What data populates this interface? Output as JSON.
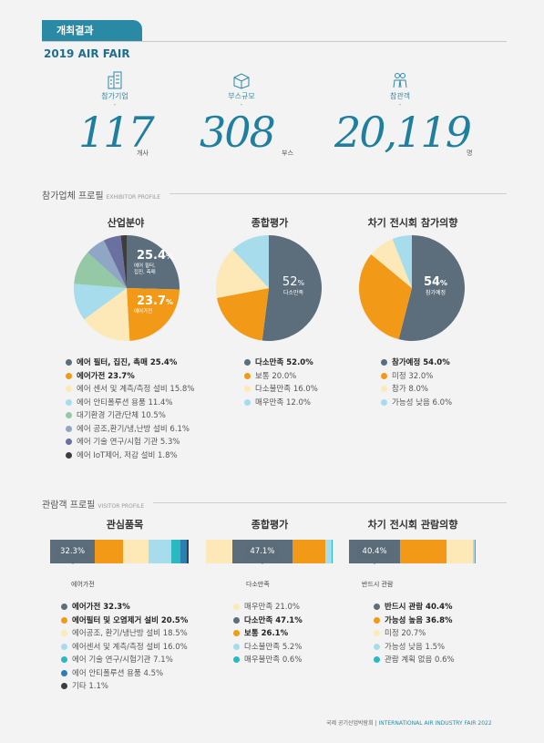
{
  "header": {
    "tab": "개최결과",
    "title": "2019 AIR FAIR"
  },
  "stats": [
    {
      "label": "참가기업",
      "dash": "-",
      "value": "117",
      "unit": "개사",
      "icon": "building-icon"
    },
    {
      "label": "부스규모",
      "dash": "-",
      "value": "308",
      "unit": "부스",
      "icon": "booth-icon"
    },
    {
      "label": "참관객",
      "dash": "-",
      "value": "20,119",
      "unit": "명",
      "icon": "visitors-icon"
    }
  ],
  "exhibitor": {
    "title": "참가업체 프로필",
    "title_en": "EXHIBITOR PROFILE"
  },
  "visitor": {
    "title": "관람객 프로필",
    "title_en": "VISITOR PROFILE"
  },
  "chart_data": [
    {
      "type": "pie",
      "title": "산업분야",
      "labels": [
        {
          "value": "25.4",
          "pct": "%",
          "text1": "에어 필터,",
          "text2": "집진, 측매"
        },
        {
          "value": "23.7",
          "pct": "%",
          "text1": "에어가전"
        }
      ],
      "series": [
        {
          "name": "에어 필터, 집진, 촉매",
          "value": 25.4,
          "color": "#5c6e7c",
          "bold": true
        },
        {
          "name": "에어가전",
          "value": 23.7,
          "color": "#f29a18",
          "bold": true
        },
        {
          "name": "에어 센서 및 계측/측정 설비",
          "value": 15.8,
          "color": "#fde9b8",
          "bold": false
        },
        {
          "name": "에어 안티폴루션 용품",
          "value": 11.4,
          "color": "#a6dcec",
          "bold": false
        },
        {
          "name": "대기환경 기관/단체",
          "value": 10.5,
          "color": "#95c8a5",
          "bold": false
        },
        {
          "name": "에어 공조,환기/냉,난방 설비",
          "value": 6.1,
          "color": "#8fa6c4",
          "bold": false
        },
        {
          "name": "에어 기술 연구/시험 기관",
          "value": 5.3,
          "color": "#6a70a0",
          "bold": false
        },
        {
          "name": "에어 IoT제어, 저감 설비",
          "value": 1.8,
          "color": "#3d3d3d",
          "bold": false
        }
      ]
    },
    {
      "type": "pie",
      "title": "종합평가",
      "labels": [
        {
          "value": "52",
          "pct": "%",
          "text1": "다소만족"
        }
      ],
      "series": [
        {
          "name": "다소만족",
          "value": 52.0,
          "color": "#5c6e7c",
          "bold": true
        },
        {
          "name": "보통",
          "value": 20.0,
          "color": "#f29a18",
          "bold": false
        },
        {
          "name": "다소불만족",
          "value": 16.0,
          "color": "#fde9b8",
          "bold": false
        },
        {
          "name": "매우만족",
          "value": 12.0,
          "color": "#a6dcec",
          "bold": false
        }
      ]
    },
    {
      "type": "pie",
      "title": "차기 전시회 참가의향",
      "labels": [
        {
          "value": "54",
          "pct": "%",
          "text1": "참가예정"
        }
      ],
      "series": [
        {
          "name": "참가예정",
          "value": 54.0,
          "color": "#5c6e7c",
          "bold": true
        },
        {
          "name": "미정",
          "value": 32.0,
          "color": "#f29a18",
          "bold": false
        },
        {
          "name": "참가",
          "value": 8.0,
          "color": "#fde9b8",
          "bold": false
        },
        {
          "name": "가능성 낮음",
          "value": 6.0,
          "color": "#a6dcec",
          "bold": false
        }
      ]
    },
    {
      "type": "bar",
      "title": "관심품목",
      "caption": "에어가전",
      "bubble": "32.3%",
      "series": [
        {
          "name": "에어가전",
          "value": 32.3,
          "color": "#5c6e7c",
          "bold": true
        },
        {
          "name": "에어필터 및 오염제거 설비",
          "value": 20.5,
          "color": "#f29a18",
          "bold": true
        },
        {
          "name": "에어공조, 환기/냉난방 설비",
          "value": 18.5,
          "color": "#fde9b8",
          "bold": false
        },
        {
          "name": "에어센서 및 계측/측정 설비",
          "value": 16.0,
          "color": "#a6dcec",
          "bold": false
        },
        {
          "name": "에어 기술 연구/시험기관",
          "value": 7.1,
          "color": "#2bb8c0",
          "bold": false
        },
        {
          "name": "에어 안티폴루션 용품",
          "value": 4.5,
          "color": "#2e7fb0",
          "bold": false
        },
        {
          "name": "기타",
          "value": 1.1,
          "color": "#3d3d3d",
          "bold": false
        }
      ]
    },
    {
      "type": "bar",
      "title": "종합평가",
      "caption": "다소만족",
      "bubble": "47.1%",
      "series": [
        {
          "name": "매우만족",
          "value": 21.0,
          "color": "#fde9b8",
          "bold": false
        },
        {
          "name": "다소만족",
          "value": 47.1,
          "color": "#5c6e7c",
          "bold": true
        },
        {
          "name": "보통",
          "value": 26.1,
          "color": "#f29a18",
          "bold": true
        },
        {
          "name": "다소불만족",
          "value": 5.2,
          "color": "#a6dcec",
          "bold": false
        },
        {
          "name": "매우불만족",
          "value": 0.6,
          "color": "#2bb8c0",
          "bold": false
        }
      ]
    },
    {
      "type": "bar",
      "title": "차기 전시회 관람의향",
      "caption": "반드시 관람",
      "bubble": "40.4%",
      "series": [
        {
          "name": "반드시 관람",
          "value": 40.4,
          "color": "#5c6e7c",
          "bold": true
        },
        {
          "name": "가능성 높음",
          "value": 36.8,
          "color": "#f29a18",
          "bold": true
        },
        {
          "name": "미정",
          "value": 20.7,
          "color": "#fde9b8",
          "bold": false
        },
        {
          "name": "가능성 낮음",
          "value": 1.5,
          "color": "#a6dcec",
          "bold": false
        },
        {
          "name": "관람 계획 없음",
          "value": 0.6,
          "color": "#2bb8c0",
          "bold": false
        }
      ]
    }
  ],
  "footer": {
    "ko": "국제 공기산업박람회",
    "sep": "|",
    "en": "INTERNATIONAL AIR INDUSTRY FAIR 2022"
  }
}
